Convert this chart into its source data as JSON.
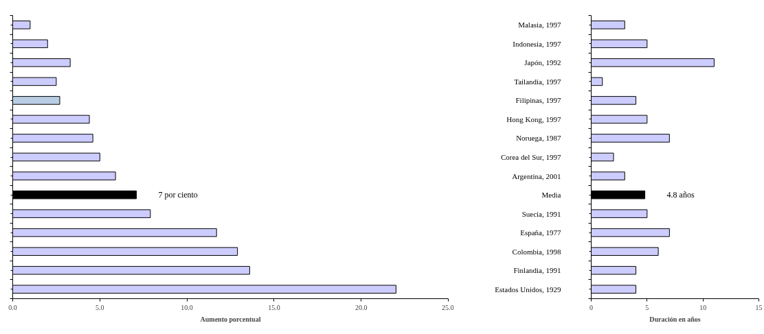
{
  "chart_data": [
    {
      "type": "bar",
      "orientation": "horizontal",
      "categories": [
        "Malasia, 1997",
        "Indonesia, 1997",
        "Japón, 1992",
        "Tailandia, 1997",
        "Filipinas, 1997",
        "Hong Kong, 1997",
        "Noruega, 1987",
        "Corea del Sur, 1997",
        "Argentina, 2001",
        "Media",
        "Suecia, 1991",
        "España, 1977",
        "Colombia, 1998",
        "Finlandia, 1991",
        "Estados Unidos, 1929"
      ],
      "values": [
        1.0,
        2.0,
        3.3,
        2.5,
        2.7,
        4.4,
        4.6,
        5.0,
        5.9,
        7.1,
        7.9,
        11.7,
        12.9,
        13.6,
        22.0
      ],
      "colors": [
        "#ccccff",
        "#ccccff",
        "#ccccff",
        "#ccccff",
        "#b8cce4",
        "#ccccff",
        "#ccccff",
        "#ccccff",
        "#ccccff",
        "#000000",
        "#ccccff",
        "#ccccff",
        "#ccccff",
        "#ccccff",
        "#ccccff"
      ],
      "xlabel": "Aumento porcentual",
      "xlim": [
        0,
        25
      ],
      "xticks": [
        {
          "value": 0,
          "label": "0.0"
        },
        {
          "value": 5,
          "label": "5.0"
        },
        {
          "value": 10,
          "label": "10.0"
        },
        {
          "value": 15,
          "label": "15.0"
        },
        {
          "value": 20,
          "label": "20.0"
        },
        {
          "value": 25,
          "label": "25.0"
        }
      ],
      "tick_labels": "x",
      "grid": false,
      "annotations": [
        {
          "text": "7 por ciento",
          "x": 7.1,
          "y": "Media"
        }
      ]
    },
    {
      "type": "bar",
      "orientation": "horizontal",
      "categories": [
        "Malasia, 1997",
        "Indonesia, 1997",
        "Japón, 1992",
        "Tailandia, 1997",
        "Filipinas, 1997",
        "Hong Kong, 1997",
        "Noruega, 1987",
        "Corea del Sur, 1997",
        "Argentina, 2001",
        "Media",
        "Suecia, 1991",
        "España, 1977",
        "Colombia, 1998",
        "Finlandia, 1991",
        "Estados Unidos, 1929"
      ],
      "values": [
        3,
        5,
        11,
        1,
        4,
        5,
        7,
        2,
        3,
        4.8,
        5,
        7,
        6,
        4,
        4
      ],
      "colors": [
        "#ccccff",
        "#ccccff",
        "#ccccff",
        "#ccccff",
        "#ccccff",
        "#ccccff",
        "#ccccff",
        "#ccccff",
        "#ccccff",
        "#000000",
        "#ccccff",
        "#ccccff",
        "#ccccff",
        "#ccccff",
        "#ccccff"
      ],
      "xlabel": "Duración en años",
      "xlim": [
        0,
        15
      ],
      "xticks": [
        0,
        5,
        10,
        15
      ],
      "grid": false,
      "annotations": [
        {
          "text": "4.8 años",
          "x": 4.8,
          "y": "Media"
        }
      ]
    }
  ]
}
